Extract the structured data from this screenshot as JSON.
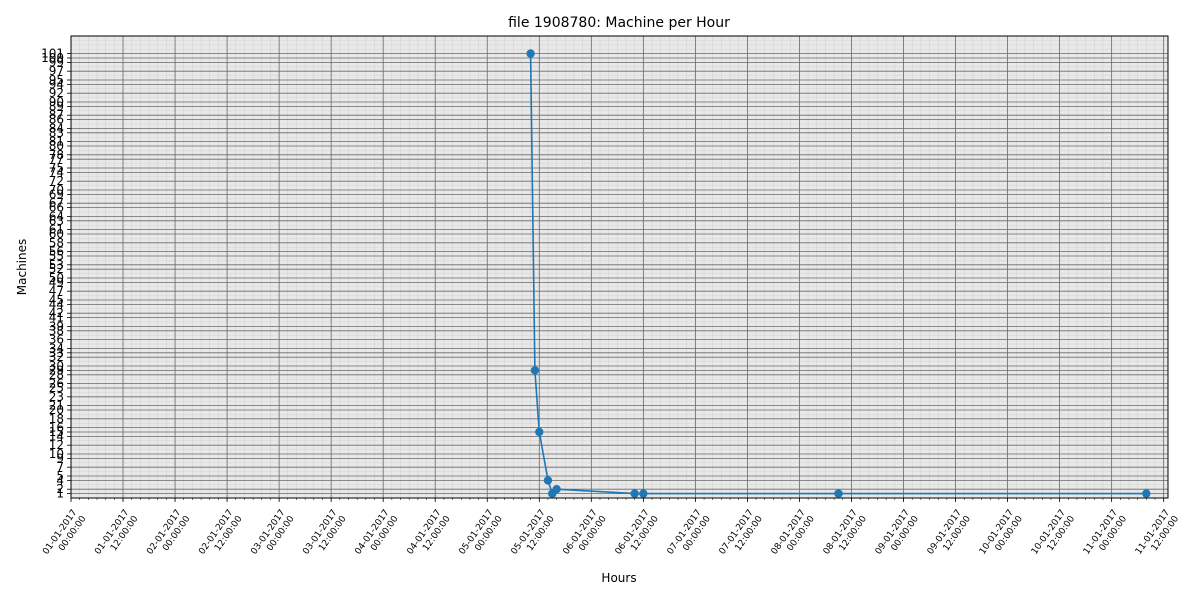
{
  "chart_data": {
    "type": "line",
    "title": "file 1908780: Machine per Hour",
    "xlabel": "Hours",
    "ylabel": "Machines",
    "x_tick_labels": [
      [
        "01-01-2017",
        "00:00:00"
      ],
      [
        "01-01-2017",
        "12:00:00"
      ],
      [
        "02-01-2017",
        "00:00:00"
      ],
      [
        "02-01-2017",
        "12:00:00"
      ],
      [
        "03-01-2017",
        "00:00:00"
      ],
      [
        "03-01-2017",
        "12:00:00"
      ],
      [
        "04-01-2017",
        "00:00:00"
      ],
      [
        "04-01-2017",
        "12:00:00"
      ],
      [
        "05-01-2017",
        "00:00:00"
      ],
      [
        "05-01-2017",
        "12:00:00"
      ],
      [
        "06-01-2017",
        "00:00:00"
      ],
      [
        "06-01-2017",
        "12:00:00"
      ],
      [
        "07-01-2017",
        "00:00:00"
      ],
      [
        "07-01-2017",
        "12:00:00"
      ],
      [
        "08-01-2017",
        "00:00:00"
      ],
      [
        "08-01-2017",
        "12:00:00"
      ],
      [
        "09-01-2017",
        "00:00:00"
      ],
      [
        "09-01-2017",
        "12:00:00"
      ],
      [
        "10-01-2017",
        "00:00:00"
      ],
      [
        "10-01-2017",
        "12:00:00"
      ],
      [
        "11-01-2017",
        "00:00:00"
      ],
      [
        "11-01-2017",
        "12:00:00"
      ]
    ],
    "y_ticks": [
      1,
      2,
      4,
      5,
      7,
      9,
      10,
      12,
      14,
      15,
      16,
      18,
      20,
      21,
      23,
      25,
      26,
      28,
      29,
      30,
      32,
      33,
      34,
      36,
      38,
      39,
      41,
      42,
      44,
      45,
      47,
      49,
      50,
      52,
      53,
      55,
      56,
      58,
      60,
      61,
      63,
      64,
      66,
      67,
      69,
      70,
      72,
      74,
      75,
      77,
      78,
      80,
      81,
      83,
      84,
      86,
      87,
      89,
      90,
      92,
      94,
      95,
      97,
      99,
      100,
      101
    ],
    "xlim": [
      "2017-01-01 00:00",
      "2017-01-11 13:00"
    ],
    "ylim": [
      0,
      105
    ],
    "grid": true,
    "series": [
      {
        "color": "#1f77b4",
        "points": [
          {
            "x": "2017-01-05 10:00",
            "y": 101
          },
          {
            "x": "2017-01-05 11:00",
            "y": 29
          },
          {
            "x": "2017-01-05 12:00",
            "y": 15
          },
          {
            "x": "2017-01-05 14:00",
            "y": 4
          },
          {
            "x": "2017-01-05 15:00",
            "y": 1
          },
          {
            "x": "2017-01-05 16:00",
            "y": 2
          },
          {
            "x": "2017-01-06 10:00",
            "y": 1
          },
          {
            "x": "2017-01-06 12:00",
            "y": 1
          },
          {
            "x": "2017-01-08 09:00",
            "y": 1
          },
          {
            "x": "2017-01-11 08:00",
            "y": 1
          }
        ]
      }
    ]
  }
}
